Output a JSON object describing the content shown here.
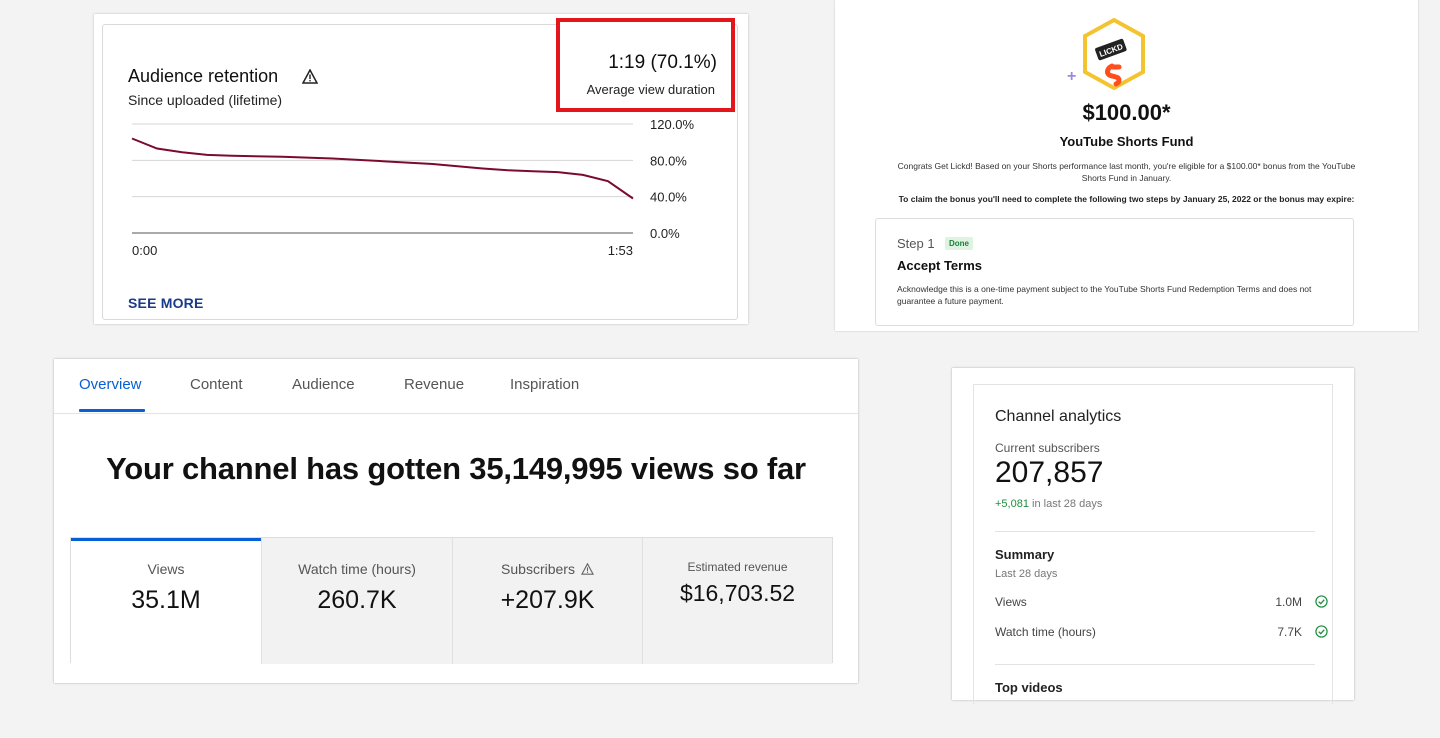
{
  "retention": {
    "title": "Audience retention",
    "subtitle": "Since uploaded (lifetime)",
    "avg_value": "1:19 (70.1%)",
    "avg_label": "Average view duration",
    "see_more": "SEE MORE",
    "highlight_color": "#e3161b",
    "line_color": "#7a0b2d",
    "chart_data": {
      "type": "line",
      "x_tick_labels": [
        "0:00",
        "1:53"
      ],
      "y_tick_labels": [
        "120.0%",
        "80.0%",
        "40.0%",
        "0.0%"
      ],
      "ylim": [
        0,
        120
      ],
      "grid": true,
      "x": [
        0,
        0.05,
        0.1,
        0.15,
        0.2,
        0.3,
        0.4,
        0.5,
        0.6,
        0.7,
        0.75,
        0.8,
        0.85,
        0.9,
        0.95,
        1.0
      ],
      "y": [
        104,
        93,
        89,
        86,
        85,
        84,
        82,
        79,
        76,
        71,
        69,
        68,
        67,
        64,
        57,
        38
      ]
    }
  },
  "shorts": {
    "badge_text": "LICKD",
    "amount": "$100.00*",
    "fund_name": "YouTube Shorts Fund",
    "body": "Congrats  Get Lickd!  Based on your Shorts performance last month, you're eligible for a $100.00* bonus from the YouTube Shorts Fund in January.",
    "claim": "To claim the bonus you'll need to complete the following two steps by January 25, 2022 or the bonus may expire:",
    "step_label": "Step 1",
    "step_status": "Done",
    "step_title": "Accept Terms",
    "step_body": "Acknowledge this is a one-time payment subject to the YouTube Shorts Fund Redemption Terms and does not guarantee a future payment."
  },
  "overview": {
    "tabs": [
      "Overview",
      "Content",
      "Audience",
      "Revenue",
      "Inspiration"
    ],
    "active_tab": "Overview",
    "accent": "#065fd4",
    "headline": "Your channel has gotten 35,149,995 views so far",
    "metrics": [
      {
        "label": "Views",
        "value": "35.1M"
      },
      {
        "label": "Watch time (hours)",
        "value": "260.7K"
      },
      {
        "label": "Subscribers",
        "value": "+207.9K"
      },
      {
        "label": "Estimated revenue",
        "value": "$16,703.52"
      }
    ]
  },
  "channel": {
    "title": "Channel analytics",
    "subs_label": "Current subscribers",
    "subs_value": "207,857",
    "delta_value": "+5,081",
    "delta_suffix": "in last 28 days",
    "summary_title": "Summary",
    "summary_range": "Last 28 days",
    "rows": [
      {
        "label": "Views",
        "value": "1.0M"
      },
      {
        "label": "Watch time (hours)",
        "value": "7.7K"
      }
    ],
    "top_videos": "Top videos",
    "check_color": "#1e8e3e"
  }
}
